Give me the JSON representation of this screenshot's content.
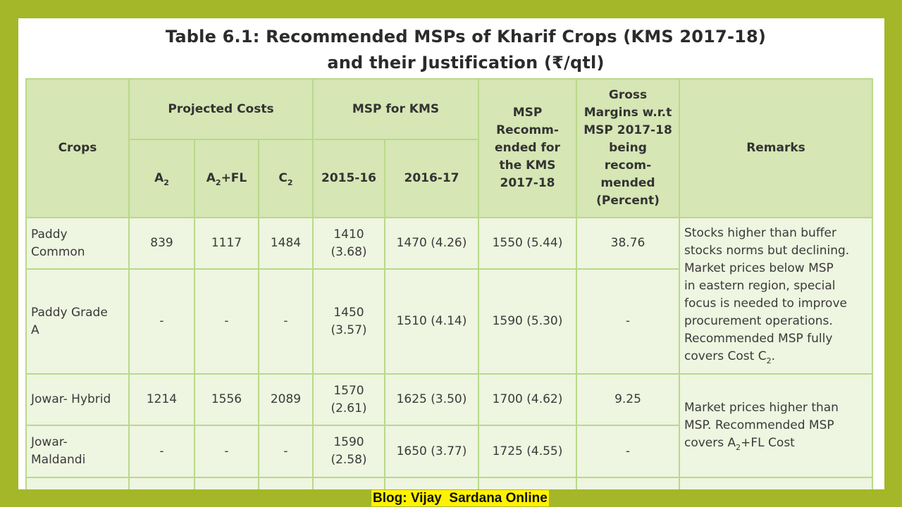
{
  "title": {
    "line1": "Table 6.1: Recommended MSPs of Kharif Crops (KMS 2017-18)",
    "line2": "and their Justification (₹/qtl)"
  },
  "table": {
    "headers": {
      "crops": "Crops",
      "projected_costs": "Projected Costs",
      "msp_for_kms": "MSP for KMS",
      "msp_recommended": [
        "MSP",
        "Recomm-",
        "ended for",
        "the KMS",
        "2017-18"
      ],
      "gross_margins": [
        "Gross",
        "Margins w.r.t",
        "MSP 2017-18",
        "being",
        "recom-",
        "mended",
        "(Percent)"
      ],
      "remarks": "Remarks",
      "a2": "A",
      "a2_sub": "2",
      "a2fl_pre": "A",
      "a2fl_sub": "2",
      "a2fl_post": "+FL",
      "c2": "C",
      "c2_sub": "2",
      "y2015": "2015-16",
      "y2016": "2016-17"
    },
    "rows": [
      {
        "crop": [
          "Paddy",
          "Common"
        ],
        "a2": "839",
        "a2fl": "1117",
        "c2": "1484",
        "msp1516": [
          "1410",
          "(3.68)"
        ],
        "msp1617": "1470 (4.26)",
        "rec": "1550 (5.44)",
        "margin": "38.76"
      },
      {
        "crop": [
          "Paddy Grade",
          "A"
        ],
        "a2": "-",
        "a2fl": "-",
        "c2": "-",
        "msp1516": [
          "1450",
          "(3.57)"
        ],
        "msp1617": "1510 (4.14)",
        "rec": "1590 (5.30)",
        "margin": "-"
      },
      {
        "crop": [
          "Jowar- Hybrid"
        ],
        "a2": "1214",
        "a2fl": "1556",
        "c2": "2089",
        "msp1516": [
          "1570",
          "(2.61)"
        ],
        "msp1617": "1625 (3.50)",
        "rec": "1700 (4.62)",
        "margin": "9.25"
      },
      {
        "crop": [
          "Jowar-",
          "Maldandi"
        ],
        "a2": "-",
        "a2fl": "-",
        "c2": "-",
        "msp1516": [
          "1590",
          "(2.58)"
        ],
        "msp1617": "1650 (3.77)",
        "rec": "1725 (4.55)",
        "margin": "-"
      }
    ],
    "remarks": {
      "paddy": [
        "Stocks higher than buffer",
        "stocks norms but declining.",
        "Market prices below MSP",
        "in eastern region, special",
        "focus is needed to improve",
        "procurement operations.",
        "Recommended MSP fully"
      ],
      "paddy_last_pre": "covers Cost C",
      "paddy_last_sub": "2",
      "paddy_last_post": ".",
      "jowar": [
        "Market prices higher than",
        "MSP. Recommended MSP"
      ],
      "jowar_last_pre": "covers A",
      "jowar_last_sub": "2",
      "jowar_last_post": "+FL Cost"
    }
  },
  "footer": {
    "text": "Blog: Vijay  Sardana Online"
  }
}
